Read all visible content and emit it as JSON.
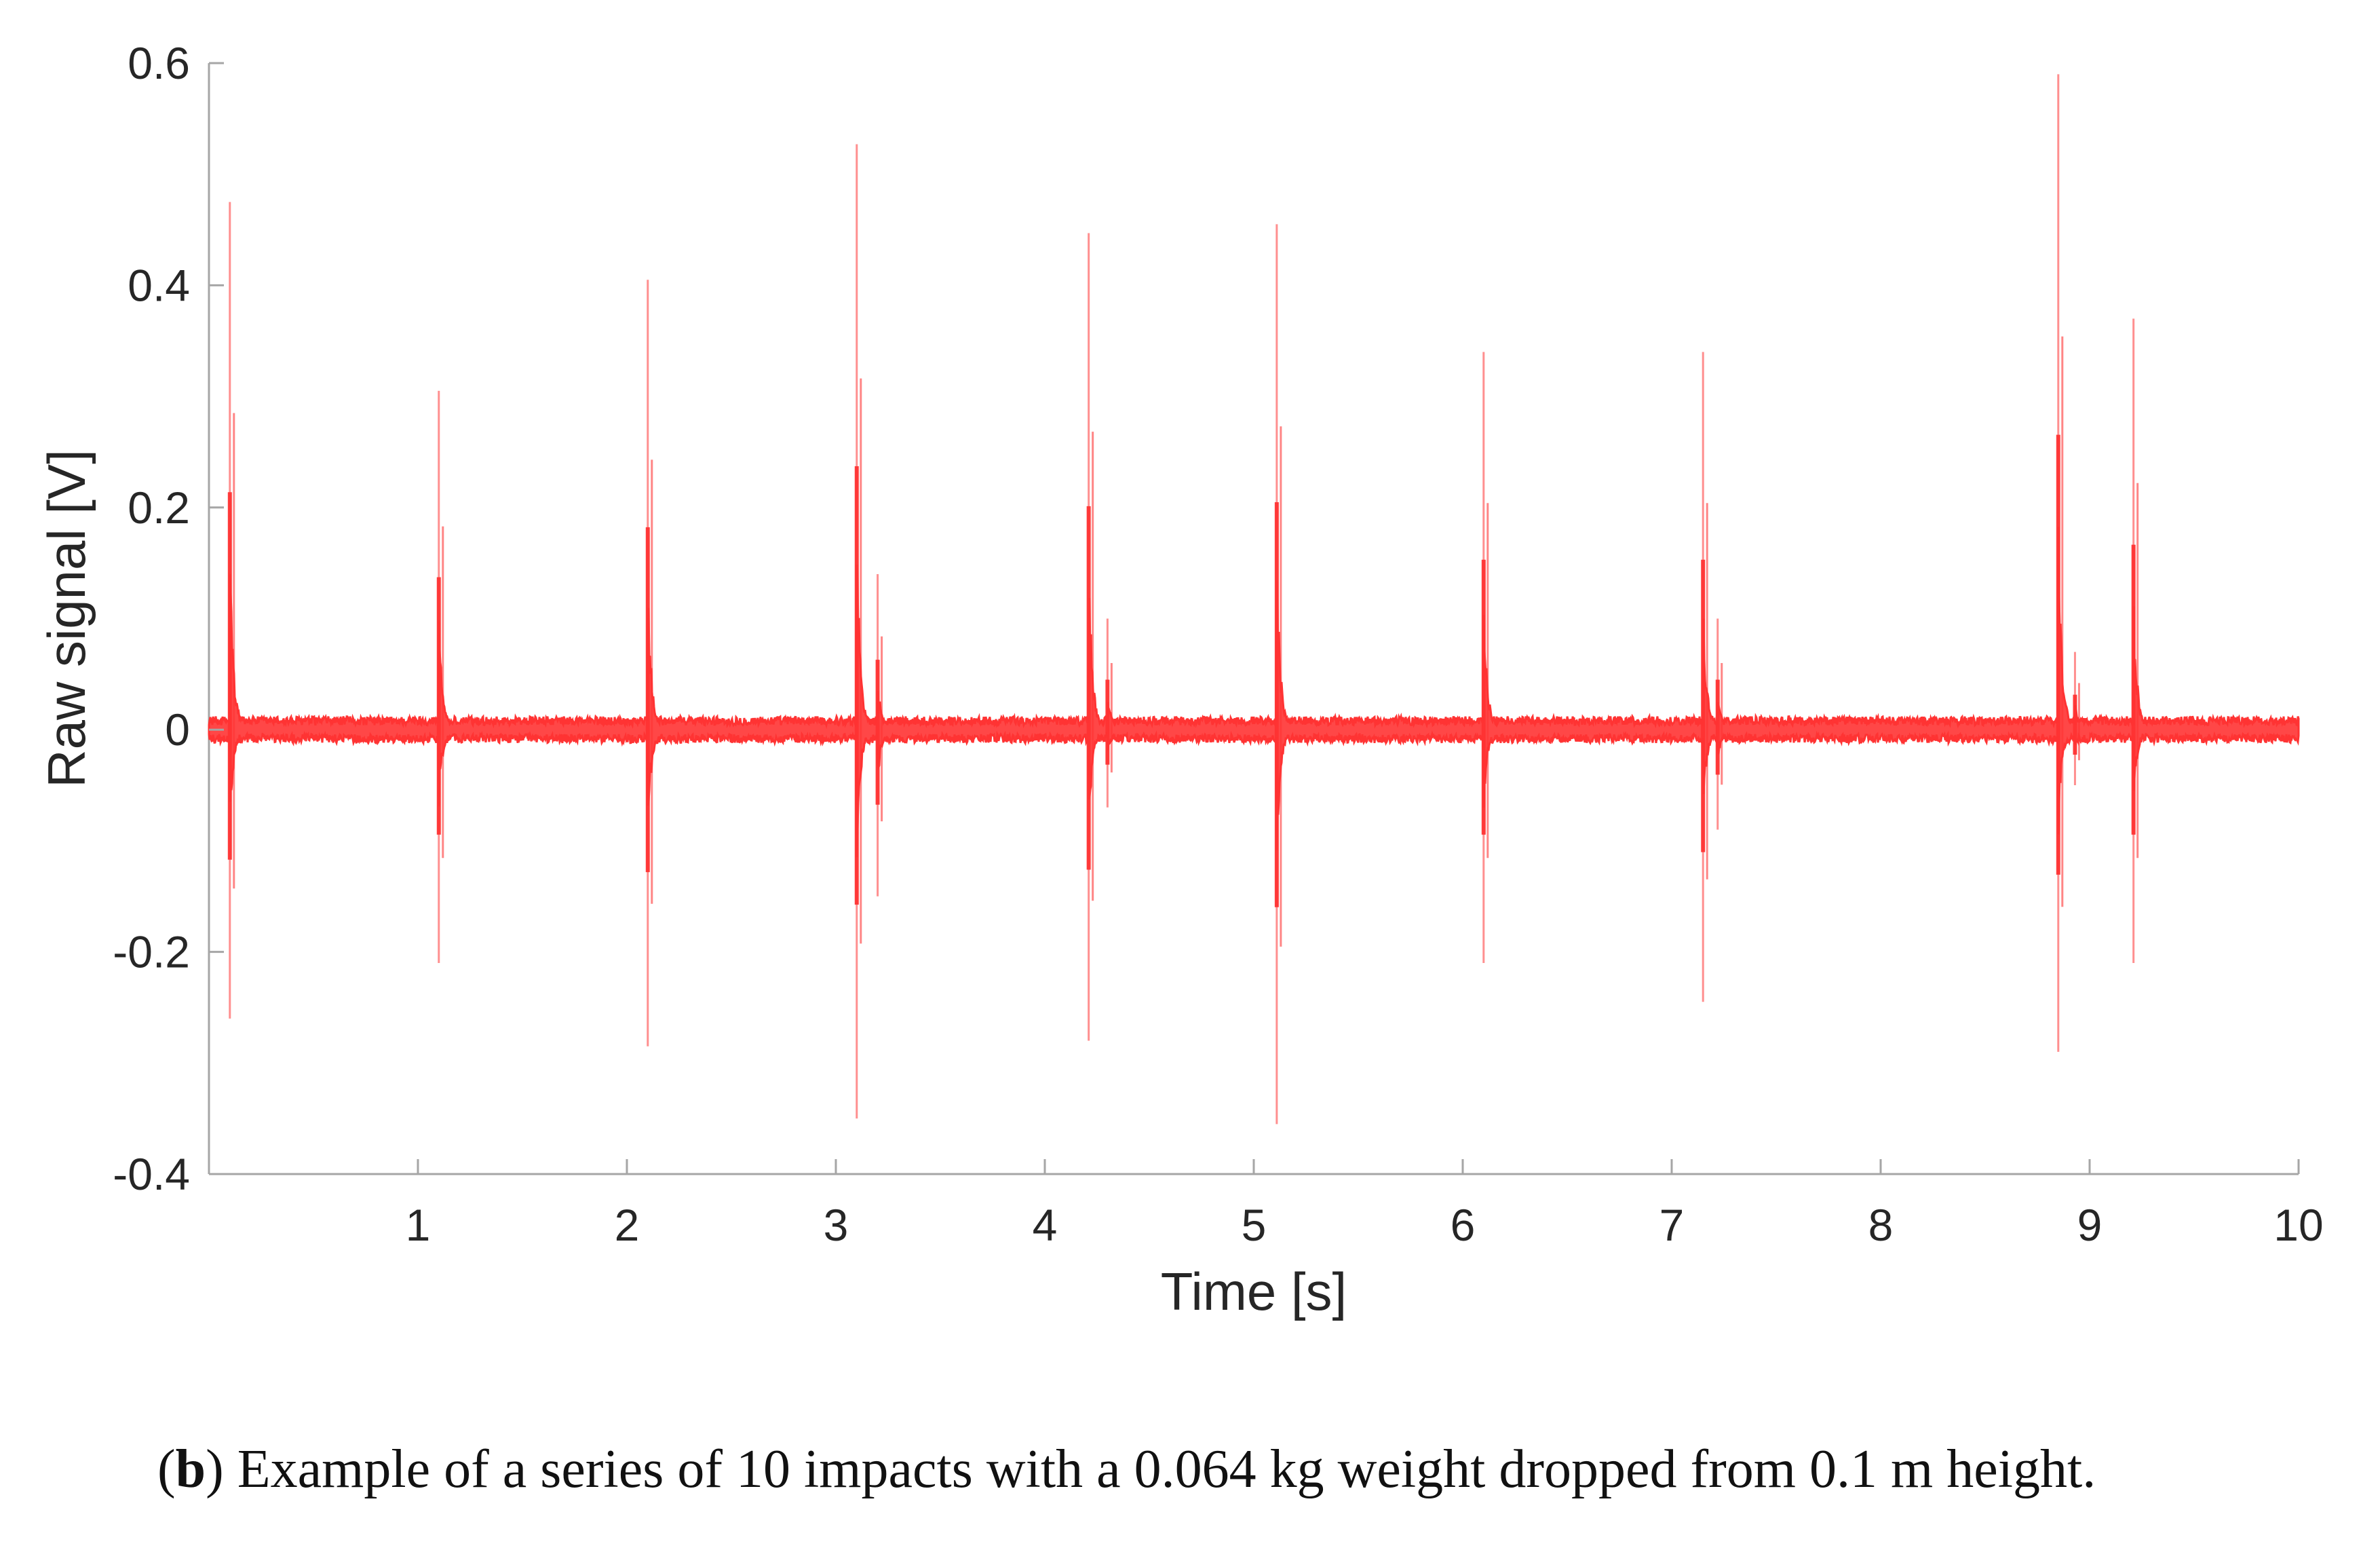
{
  "chart_data": {
    "type": "line",
    "title": "",
    "xlabel": "Time [s]",
    "ylabel": "Raw signal [V]",
    "xlim": [
      0,
      10
    ],
    "ylim": [
      -0.4,
      0.6
    ],
    "xticks": [
      1,
      2,
      3,
      4,
      5,
      6,
      7,
      8,
      9,
      10
    ],
    "xtick_labels": [
      "1",
      "2",
      "3",
      "4",
      "5",
      "6",
      "7",
      "8",
      "9",
      "10"
    ],
    "yticks": [
      -0.4,
      -0.2,
      0,
      0.2,
      0.4,
      0.6
    ],
    "ytick_labels": [
      "-0.4",
      "-0.2",
      "0",
      "0.2",
      "0.4",
      "0.6"
    ],
    "grid": false,
    "series_color": "#ff3333",
    "baseline_noise_amplitude": 0.008,
    "impacts": [
      {
        "t": 0.1,
        "max": 0.475,
        "min": -0.26
      },
      {
        "t": 1.1,
        "max": 0.305,
        "min": -0.21
      },
      {
        "t": 2.1,
        "max": 0.405,
        "min": -0.285
      },
      {
        "t": 3.1,
        "max": 0.527,
        "min": -0.35
      },
      {
        "t": 3.2,
        "max": 0.14,
        "min": -0.15
      },
      {
        "t": 4.21,
        "max": 0.447,
        "min": -0.28
      },
      {
        "t": 4.3,
        "max": 0.1,
        "min": -0.07
      },
      {
        "t": 5.11,
        "max": 0.455,
        "min": -0.355
      },
      {
        "t": 6.1,
        "max": 0.34,
        "min": -0.21
      },
      {
        "t": 7.15,
        "max": 0.34,
        "min": -0.245
      },
      {
        "t": 7.22,
        "max": 0.1,
        "min": -0.09
      },
      {
        "t": 8.85,
        "max": 0.59,
        "min": -0.29
      },
      {
        "t": 8.93,
        "max": 0.07,
        "min": -0.05
      },
      {
        "t": 9.21,
        "max": 0.37,
        "min": -0.21
      }
    ]
  },
  "caption": {
    "label": "b",
    "text": "Example of a series of 10 impacts with a 0.064 kg weight dropped from 0.1 m height."
  }
}
